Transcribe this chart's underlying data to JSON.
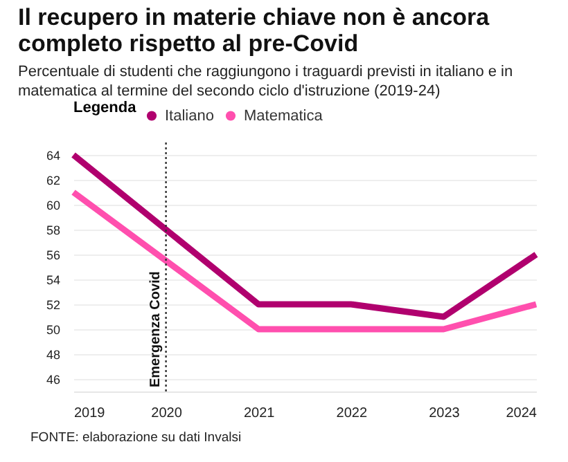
{
  "chart_data": {
    "type": "line",
    "title": "Il recupero in materie chiave non è ancora completo rispetto al pre-Covid",
    "subtitle": "Percentuale di studenti che raggiungono i traguardi previsti in italiano e in matematica al termine del secondo ciclo d'istruzione (2019-24)",
    "legend_title": "Legenda",
    "x": [
      2019,
      2021,
      2022,
      2023,
      2024
    ],
    "series": [
      {
        "name": "Italiano",
        "color": "#b0006e",
        "values": [
          64,
          52,
          52,
          51,
          56
        ]
      },
      {
        "name": "Matematica",
        "color": "#ff4fae",
        "values": [
          61,
          50,
          50,
          50,
          52
        ]
      }
    ],
    "xlim": [
      2019,
      2024
    ],
    "xticks": [
      2019,
      2020,
      2021,
      2022,
      2023,
      2024
    ],
    "ylim": [
      45,
      65
    ],
    "yticks": [
      46,
      48,
      50,
      52,
      54,
      56,
      58,
      60,
      62,
      64
    ],
    "grid": "y",
    "legend": "top left",
    "marker": "none",
    "line_style": "solid",
    "ref_lines": [
      {
        "axis": "x",
        "value": 2020,
        "label": "Emergenza Covid",
        "line_style": "dotted",
        "color": "#333333"
      }
    ],
    "annotations": [
      "FONTE: elaborazione su dati Invalsi"
    ]
  }
}
